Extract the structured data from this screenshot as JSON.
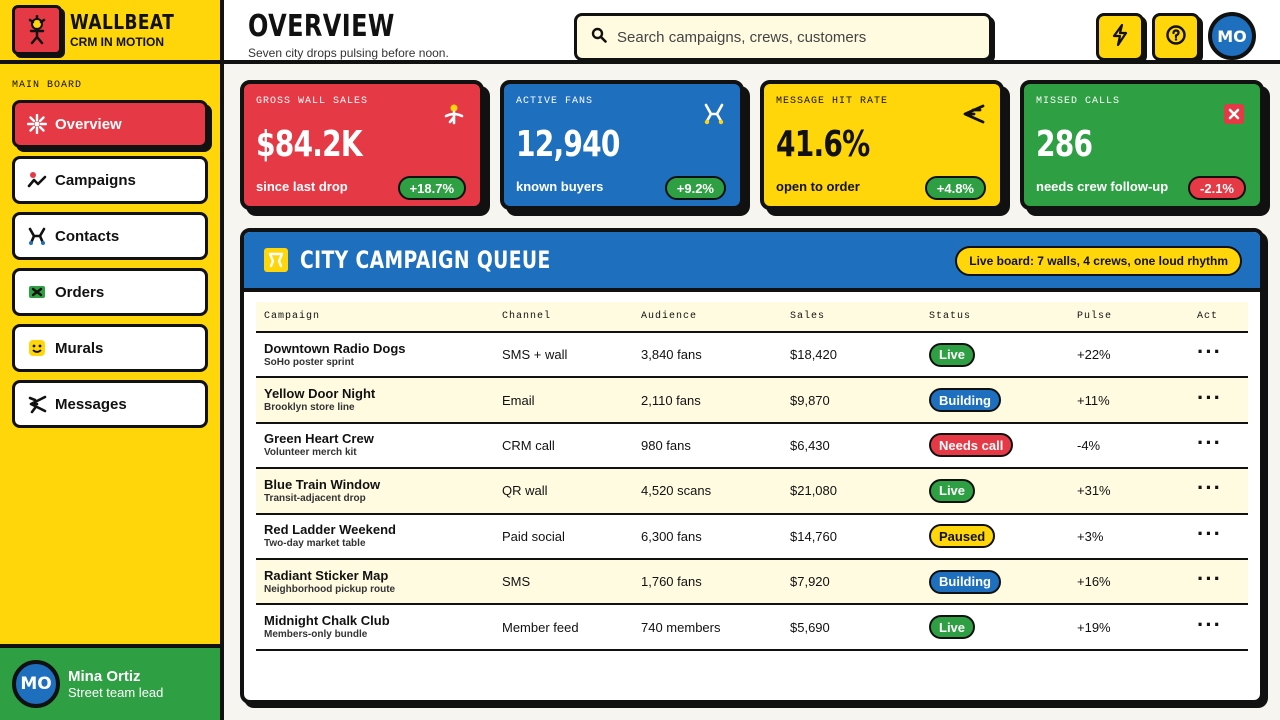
{
  "brand": {
    "name": "WALLBEAT",
    "tagline": "CRM IN MOTION"
  },
  "sidebar": {
    "section_label": "MAIN BOARD",
    "items": [
      {
        "label": "Overview",
        "icon": "sun-burst-icon",
        "active": true
      },
      {
        "label": "Campaigns",
        "icon": "trend-line-icon"
      },
      {
        "label": "Contacts",
        "icon": "people-icon"
      },
      {
        "label": "Orders",
        "icon": "cross-box-icon"
      },
      {
        "label": "Murals",
        "icon": "smiley-icon"
      },
      {
        "label": "Messages",
        "icon": "megaphone-icon"
      }
    ]
  },
  "user": {
    "initials": "MO",
    "name": "Mina Ortiz",
    "role": "Street team lead"
  },
  "header": {
    "title": "OVERVIEW",
    "subtitle": "Seven city drops pulsing before noon.",
    "search_placeholder": "Search campaigns, crews, customers",
    "avatar_initials": "MO"
  },
  "stats": [
    {
      "label": "GROSS WALL SALES",
      "value": "$84.2K",
      "note": "since last drop",
      "delta": "+18.7%",
      "bg": "#e63946",
      "fg": "#ffffff",
      "delta_bg": "#2ea043"
    },
    {
      "label": "ACTIVE FANS",
      "value": "12,940",
      "note": "known buyers",
      "delta": "+9.2%",
      "bg": "#1f6fbf",
      "fg": "#ffffff",
      "delta_bg": "#2ea043"
    },
    {
      "label": "MESSAGE HIT RATE",
      "value": "41.6%",
      "note": "open to order",
      "delta": "+4.8%",
      "bg": "#ffd60a",
      "fg": "#111111",
      "delta_bg": "#2ea043"
    },
    {
      "label": "MISSED CALLS",
      "value": "286",
      "note": "needs crew follow-up",
      "delta": "-2.1%",
      "bg": "#2ea043",
      "fg": "#ffffff",
      "delta_bg": "#e63946"
    }
  ],
  "queue": {
    "title": "CITY CAMPAIGN QUEUE",
    "badge": "Live board: 7 walls, 4 crews, one loud rhythm",
    "columns": [
      "Campaign",
      "Channel",
      "Audience",
      "Sales",
      "Status",
      "Pulse",
      "Act"
    ],
    "rows": [
      {
        "name": "Downtown Radio Dogs",
        "sub": "SoHo poster sprint",
        "channel": "SMS + wall",
        "audience": "3,840 fans",
        "sales": "$18,420",
        "status": "Live",
        "status_kind": "live",
        "pulse": "+22%"
      },
      {
        "name": "Yellow Door Night",
        "sub": "Brooklyn store line",
        "channel": "Email",
        "audience": "2,110 fans",
        "sales": "$9,870",
        "status": "Building",
        "status_kind": "building",
        "pulse": "+11%"
      },
      {
        "name": "Green Heart Crew",
        "sub": "Volunteer merch kit",
        "channel": "CRM call",
        "audience": "980 fans",
        "sales": "$6,430",
        "status": "Needs call",
        "status_kind": "needs",
        "pulse": "-4%"
      },
      {
        "name": "Blue Train Window",
        "sub": "Transit-adjacent drop",
        "channel": "QR wall",
        "audience": "4,520 scans",
        "sales": "$21,080",
        "status": "Live",
        "status_kind": "live",
        "pulse": "+31%"
      },
      {
        "name": "Red Ladder Weekend",
        "sub": "Two-day market table",
        "channel": "Paid social",
        "audience": "6,300 fans",
        "sales": "$14,760",
        "status": "Paused",
        "status_kind": "paused",
        "pulse": "+3%"
      },
      {
        "name": "Radiant Sticker Map",
        "sub": "Neighborhood pickup route",
        "channel": "SMS",
        "audience": "1,760 fans",
        "sales": "$7,920",
        "status": "Building",
        "status_kind": "building",
        "pulse": "+16%"
      },
      {
        "name": "Midnight Chalk Club",
        "sub": "Members-only bundle",
        "channel": "Member feed",
        "audience": "740 members",
        "sales": "$5,690",
        "status": "Live",
        "status_kind": "live",
        "pulse": "+19%"
      }
    ]
  }
}
